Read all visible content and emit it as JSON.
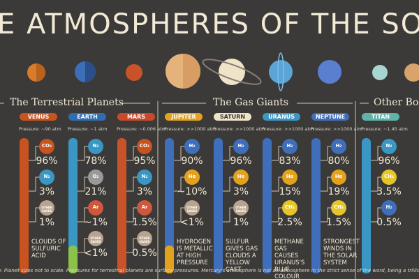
{
  "title": "E ATMOSPHERES OF THE SOLAR SYST",
  "sections": [
    "The Terrestrial Planets",
    "The Gas Giants",
    "Other Bod"
  ],
  "columns": [
    {
      "name": "VENUS",
      "pressure": "Pressure: ~90 atm",
      "gases": [
        {
          "symbol": "CO₂",
          "value": "96%"
        },
        {
          "symbol": "N₂",
          "value": "3%"
        },
        {
          "symbol": "OTHER GASES",
          "value": "1%"
        }
      ],
      "note": "Clouds of sulfuric acid"
    },
    {
      "name": "EARTH",
      "pressure": "Pressure: ~1 atm",
      "gases": [
        {
          "symbol": "N₂",
          "value": "78%"
        },
        {
          "symbol": "O₂",
          "value": "21%"
        },
        {
          "symbol": "Ar",
          "value": "~1%"
        },
        {
          "symbol": "OTHER GASES",
          "value": "<1%"
        }
      ],
      "note": ""
    },
    {
      "name": "MARS",
      "pressure": "Pressure: ~0.006 atm",
      "gases": [
        {
          "symbol": "CO₂",
          "value": "95%"
        },
        {
          "symbol": "N₂",
          "value": "3%"
        },
        {
          "symbol": "Ar",
          "value": "1.5%"
        },
        {
          "symbol": "OTHER GASES",
          "value": "0.5%"
        }
      ],
      "note": ""
    },
    {
      "name": "JUPITER",
      "pressure": "Pressure: >>1000 atm",
      "gases": [
        {
          "symbol": "H₂",
          "value": "90%"
        },
        {
          "symbol": "He",
          "value": "~10%"
        },
        {
          "symbol": "OTHER GASES",
          "value": "<1%"
        }
      ],
      "note": "Hydrogen is metallic at high pressure"
    },
    {
      "name": "SATURN",
      "pressure": "Pressure: >>1000 atm",
      "gases": [
        {
          "symbol": "H₂",
          "value": "96%"
        },
        {
          "symbol": "He",
          "value": "3%"
        },
        {
          "symbol": "OTHER GASES",
          "value": "1%"
        }
      ],
      "note": "Sulfur gives gas clouds a yellow cast"
    },
    {
      "name": "URANUS",
      "pressure": "Pressure: >>1000 atm",
      "gases": [
        {
          "symbol": "H₂",
          "value": "83%"
        },
        {
          "symbol": "He",
          "value": "15%"
        },
        {
          "symbol": "CH₄",
          "value": "2.5%"
        }
      ],
      "note": "Methane gas causes Uranus's blue colour"
    },
    {
      "name": "NEPTUNE",
      "pressure": "Pressure: >>1000 atm",
      "gases": [
        {
          "symbol": "H₂",
          "value": "80%"
        },
        {
          "symbol": "He",
          "value": "19%"
        },
        {
          "symbol": "CH₄",
          "value": "1.5%"
        }
      ],
      "note": "Strongest winds in the solar system"
    },
    {
      "name": "TITAN",
      "pressure": "Pressure: ~1.45 atm",
      "gases": [
        {
          "symbol": "N₂",
          "value": "96%"
        },
        {
          "symbol": "CH₄",
          "value": "3.5%"
        },
        {
          "symbol": "H₂",
          "value": "0.5%"
        }
      ],
      "note": ""
    }
  ],
  "footnote": "e: Planet sizes not to scale. Pressures for terrestrial planets are surface pressures. Mercury's atmosphere is not an atmosphere in the strict sense of the word, being a trillion times thinner than Earth's"
}
